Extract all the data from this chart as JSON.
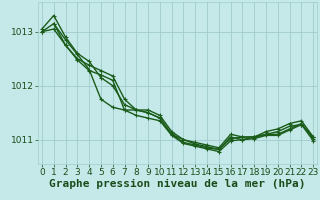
{
  "series": [
    {
      "x": [
        0,
        1,
        2,
        3,
        4,
        5,
        6,
        7,
        8,
        9,
        10,
        11,
        12,
        13,
        14,
        15,
        16,
        17,
        18,
        19,
        20,
        21,
        22,
        23
      ],
      "y": [
        1013.05,
        1013.3,
        1012.9,
        1012.6,
        1012.45,
        1012.15,
        1012.0,
        1011.65,
        1011.55,
        1011.5,
        1011.4,
        1011.1,
        1010.95,
        1010.9,
        1010.85,
        1010.82,
        1011.05,
        1011.0,
        1011.05,
        1011.1,
        1011.1,
        1011.2,
        1011.3,
        1011.02
      ],
      "color": "#1a5c1a",
      "linewidth": 1.0,
      "marker": "+"
    },
    {
      "x": [
        0,
        1,
        2,
        3,
        4,
        5,
        6,
        7,
        8,
        9,
        10,
        11,
        12,
        13,
        14,
        15,
        16,
        17,
        18,
        19,
        20,
        21,
        22,
        23
      ],
      "y": [
        1013.0,
        1013.15,
        1012.85,
        1012.58,
        1012.3,
        1011.75,
        1011.6,
        1011.55,
        1011.55,
        1011.55,
        1011.45,
        1011.15,
        1011.0,
        1010.92,
        1010.87,
        1010.82,
        1011.02,
        1011.05,
        1011.05,
        1011.15,
        1011.2,
        1011.3,
        1011.35,
        1011.05
      ],
      "color": "#1a5c1a",
      "linewidth": 1.0,
      "marker": "+"
    },
    {
      "x": [
        1,
        2,
        3,
        4,
        5,
        6,
        7,
        8,
        9,
        10,
        11,
        12,
        13,
        14,
        15,
        16,
        17,
        18,
        19,
        20,
        21,
        22,
        23
      ],
      "y": [
        1013.15,
        1012.75,
        1012.5,
        1012.38,
        1012.28,
        1012.18,
        1011.75,
        1011.55,
        1011.5,
        1011.4,
        1011.1,
        1011.0,
        1010.95,
        1010.9,
        1010.85,
        1011.1,
        1011.05,
        1011.05,
        1011.1,
        1011.15,
        1011.25,
        1011.28,
        1011.05
      ],
      "color": "#1a5c1a",
      "linewidth": 1.0,
      "marker": "+"
    },
    {
      "x": [
        0,
        1,
        2,
        3,
        4,
        5,
        6,
        7,
        8,
        9,
        10,
        11,
        12,
        13,
        14,
        15,
        16,
        17,
        18,
        19,
        20,
        21,
        22,
        23
      ],
      "y": [
        1013.0,
        1013.05,
        1012.75,
        1012.48,
        1012.28,
        1012.2,
        1012.1,
        1011.55,
        1011.45,
        1011.4,
        1011.35,
        1011.08,
        1010.93,
        1010.88,
        1010.83,
        1010.78,
        1010.98,
        1011.0,
        1011.02,
        1011.08,
        1011.08,
        1011.18,
        1011.28,
        1010.98
      ],
      "color": "#1a5c1a",
      "linewidth": 1.0,
      "marker": "+"
    }
  ],
  "background_color": "#c5e8e8",
  "grid_color": "#a0cccc",
  "xlabel": "Graphe pression niveau de la mer (hPa)",
  "xlabel_color": "#1a4c1a",
  "xlabel_fontsize": 8,
  "xticks": [
    0,
    1,
    2,
    3,
    4,
    5,
    6,
    7,
    8,
    9,
    10,
    11,
    12,
    13,
    14,
    15,
    16,
    17,
    18,
    19,
    20,
    21,
    22,
    23
  ],
  "yticks": [
    1011,
    1012,
    1013
  ],
  "ylim": [
    1010.55,
    1013.55
  ],
  "xlim": [
    -0.3,
    23.3
  ],
  "tick_fontsize": 6.5,
  "tick_color": "#1a4c1a"
}
